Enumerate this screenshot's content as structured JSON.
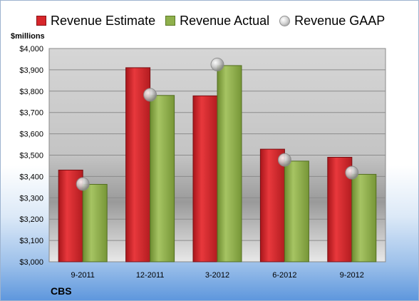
{
  "chart_data": {
    "type": "bar",
    "categories": [
      "9-2011",
      "12-2011",
      "3-2012",
      "6-2012",
      "9-2012"
    ],
    "series": [
      {
        "name": "Revenue Estimate",
        "values": [
          3430,
          3910,
          3778,
          3528,
          3490
        ]
      },
      {
        "name": "Revenue Actual",
        "values": [
          3363,
          3780,
          3920,
          3472,
          3410
        ]
      },
      {
        "name": "Revenue GAAP",
        "values": [
          3365,
          3783,
          3925,
          3478,
          3418
        ]
      }
    ],
    "ylabel": "$millions",
    "ylim": [
      3000,
      4000
    ],
    "yticks": [
      3000,
      3100,
      3200,
      3300,
      3400,
      3500,
      3600,
      3700,
      3800,
      3900,
      4000
    ],
    "ytick_labels": [
      "$3,000",
      "$3,100",
      "$3,200",
      "$3,300",
      "$3,400",
      "$3,500",
      "$3,600",
      "$3,700",
      "$3,800",
      "$3,900",
      "$4,000"
    ],
    "grid": true,
    "legend": "top"
  },
  "company": "CBS",
  "colors": {
    "estimate": "#d7262b",
    "actual": "#8fb04c",
    "gaap": "#c8c8c8"
  }
}
